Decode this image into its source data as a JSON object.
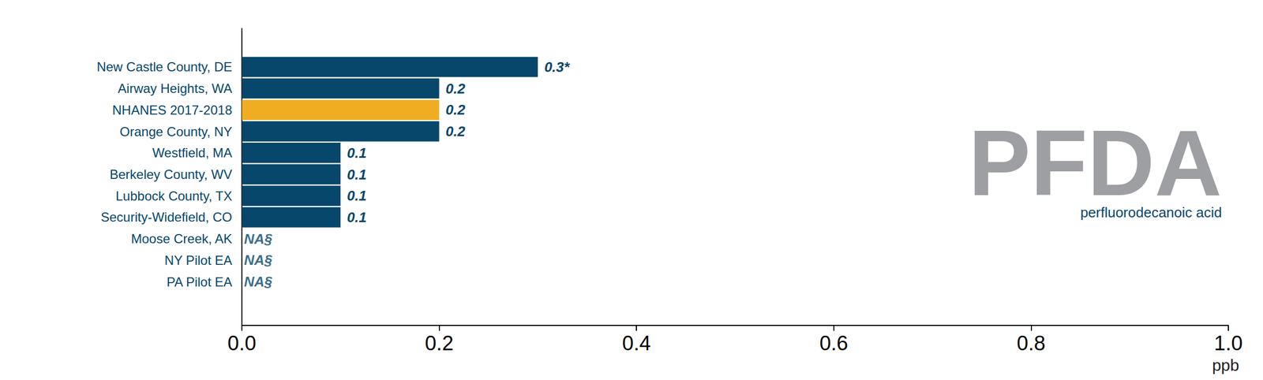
{
  "chart_data": {
    "type": "bar",
    "orientation": "horizontal",
    "title": "PFDA",
    "subtitle": "perfluorodecanoic acid",
    "xlabel": "ppb",
    "categories": [
      "New Castle County, DE",
      "Airway Heights, WA",
      "NHANES 2017-2018",
      "Orange County, NY",
      "Westfield, MA",
      "Berkeley County, WV",
      "Lubbock County, TX",
      "Security-Widefield, CO",
      "Moose Creek, AK",
      "NY Pilot EA",
      "PA Pilot EA"
    ],
    "values": [
      0.3,
      0.2,
      0.2,
      0.2,
      0.1,
      0.1,
      0.1,
      0.1,
      null,
      null,
      null
    ],
    "value_labels": [
      "0.3*",
      "0.2",
      "0.2",
      "0.2",
      "0.1",
      "0.1",
      "0.1",
      "0.1",
      "NA§",
      "NA§",
      "NA§"
    ],
    "colors": [
      "#06476b",
      "#06476b",
      "#f0ad22",
      "#06476b",
      "#06476b",
      "#06476b",
      "#06476b",
      "#06476b",
      "#06476b",
      "#06476b",
      "#06476b"
    ],
    "xlim": [
      0,
      1
    ],
    "xticks": [
      {
        "value": 0,
        "label": "0.0"
      },
      0.2,
      0.4,
      0.6,
      0.8,
      {
        "value": 1,
        "label": "1.0"
      }
    ],
    "data_labels": true,
    "grid": false
  }
}
